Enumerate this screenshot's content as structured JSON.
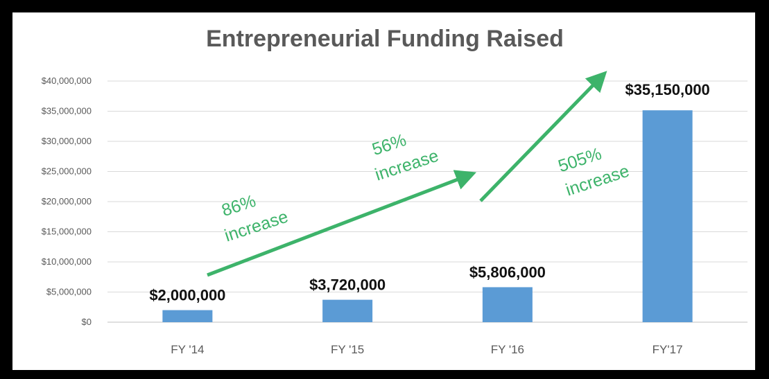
{
  "chart_data": {
    "type": "bar",
    "title": "Entrepreneurial Funding Raised",
    "categories": [
      "FY '14",
      "FY '15",
      "FY '16",
      "FY'17"
    ],
    "values": [
      2000000,
      3720000,
      5806000,
      35150000
    ],
    "data_labels": [
      "$2,000,000",
      "$3,720,000",
      "$5,806,000",
      "$35,150,000"
    ],
    "ylim": [
      0,
      40000000
    ],
    "yticks": [
      0,
      5000000,
      10000000,
      15000000,
      20000000,
      25000000,
      30000000,
      35000000,
      40000000
    ],
    "ytick_labels": [
      "$0",
      "$5,000,000",
      "$10,000,000",
      "$15,000,000",
      "$20,000,000",
      "$25,000,000",
      "$30,000,000",
      "$35,000,000",
      "$40,000,000"
    ],
    "xlabel": "",
    "ylabel": "",
    "grid": true,
    "bar_color": "#5b9bd5",
    "annotations": [
      {
        "percent": "86%",
        "word": "increase"
      },
      {
        "percent": "56%",
        "word": "increase"
      },
      {
        "percent": "505%",
        "word": "increase"
      }
    ],
    "annotation_color": "#3db36a"
  }
}
